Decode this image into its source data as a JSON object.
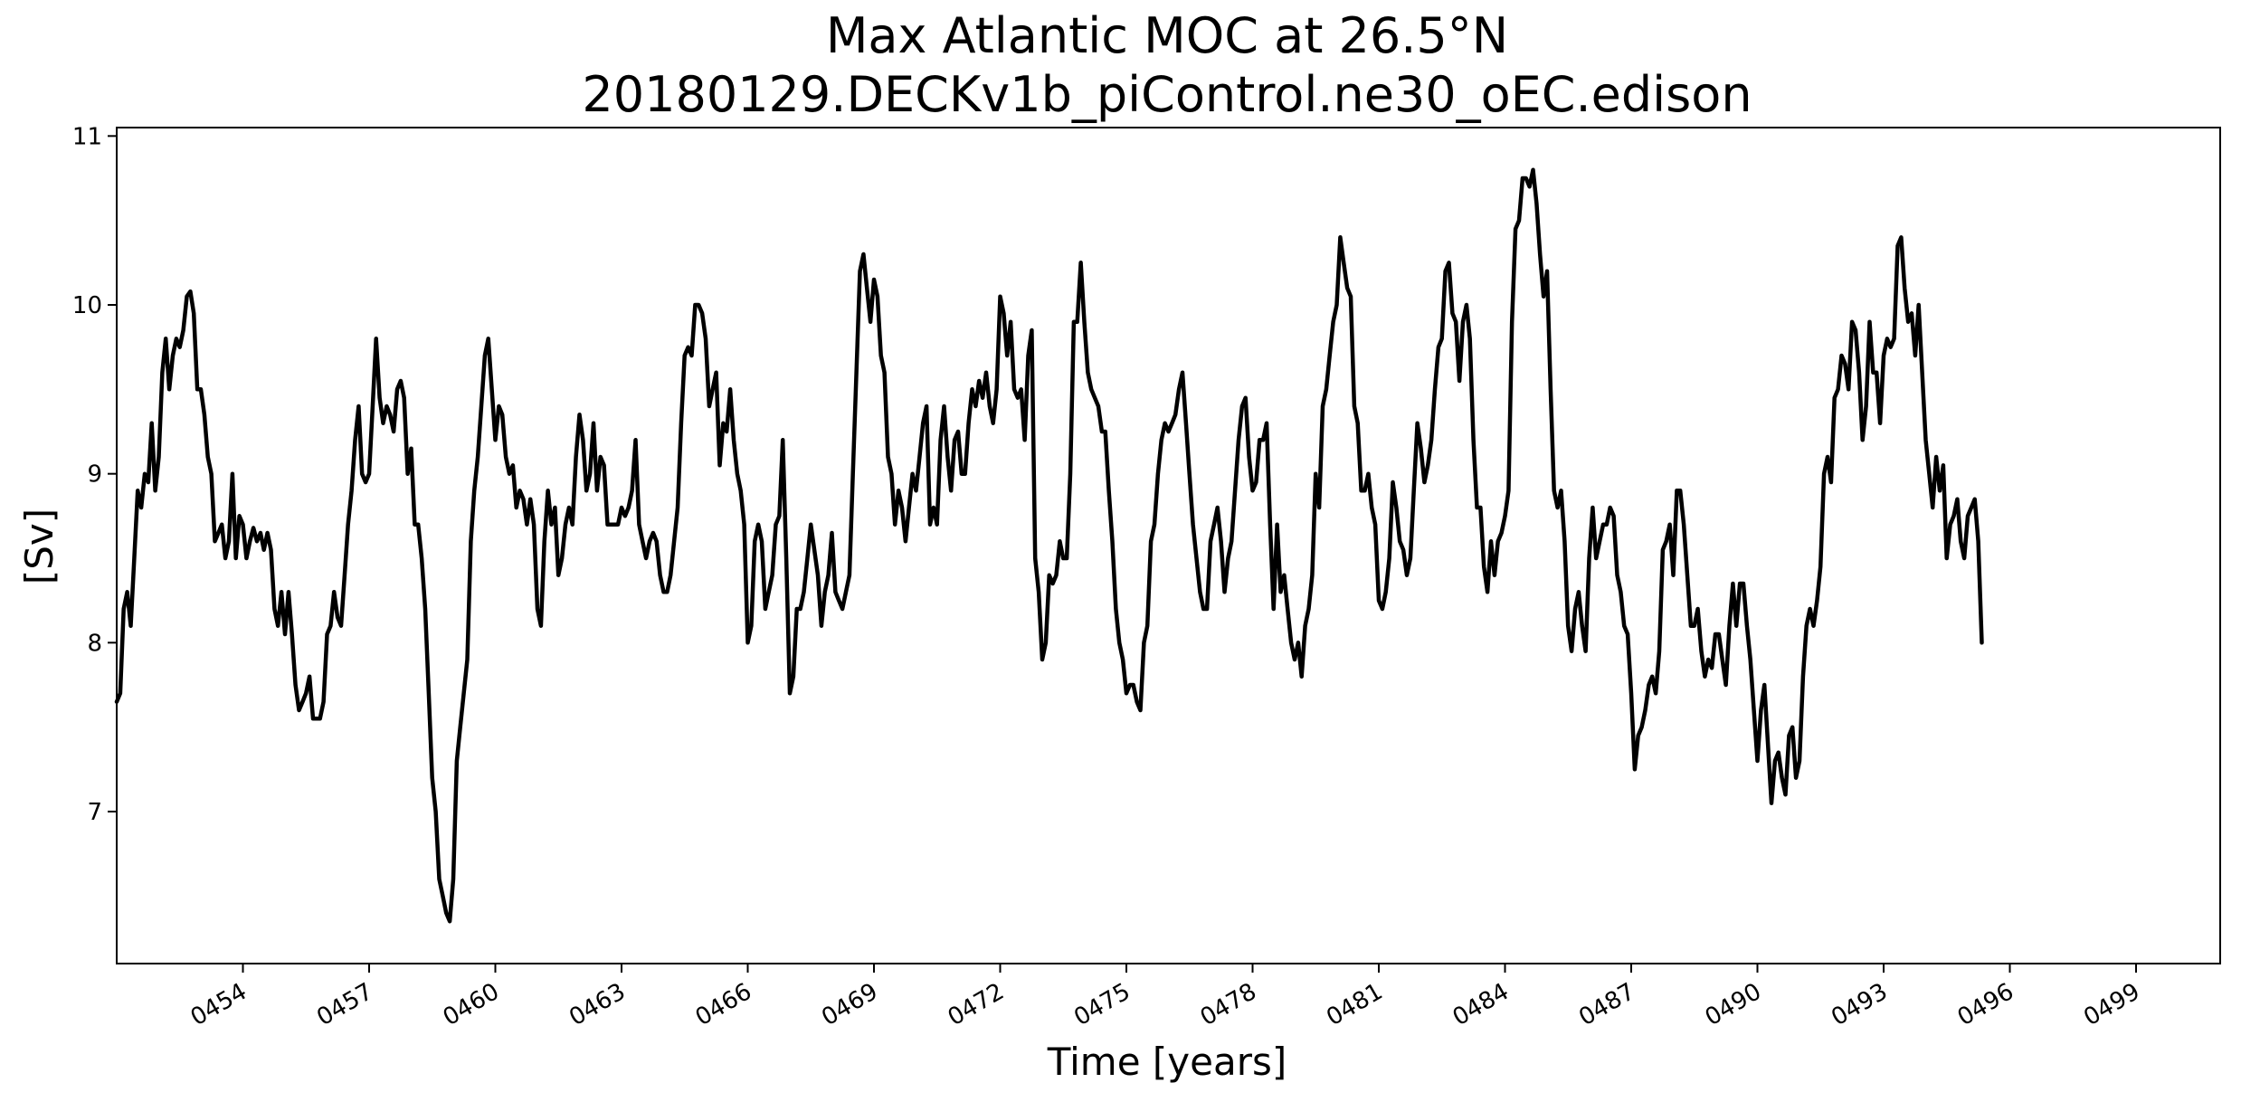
{
  "chart_data": {
    "type": "line",
    "title": "Max Atlantic MOC at 26.5°N",
    "subtitle": "20180129.DECKv1b_piControl.ne30_oEC.edison",
    "xlabel": "Time [years]",
    "ylabel": "[Sv]",
    "xlim": [
      451.0,
      501.0
    ],
    "ylim": [
      6.1,
      11.05
    ],
    "grid": false,
    "line_color": "#000000",
    "xticks": [
      454,
      457,
      460,
      463,
      466,
      469,
      472,
      475,
      478,
      481,
      484,
      487,
      490,
      493,
      496,
      499
    ],
    "xtick_labels": [
      "0454",
      "0457",
      "0460",
      "0463",
      "0466",
      "0469",
      "0472",
      "0475",
      "0478",
      "0481",
      "0484",
      "0487",
      "0490",
      "0493",
      "0496",
      "0499"
    ],
    "yticks": [
      7,
      8,
      9,
      10,
      11
    ],
    "ytick_labels": [
      "7",
      "8",
      "9",
      "10",
      "11"
    ],
    "series": [
      {
        "x_start": 451.0,
        "x_step": 0.0833333,
        "y": [
          7.65,
          7.7,
          8.2,
          8.3,
          8.1,
          8.5,
          8.9,
          8.8,
          9.0,
          8.95,
          9.3,
          8.9,
          9.1,
          9.6,
          9.8,
          9.5,
          9.7,
          9.8,
          9.75,
          9.85,
          10.05,
          10.08,
          9.95,
          9.5,
          9.5,
          9.35,
          9.1,
          9.0,
          8.6,
          8.65,
          8.7,
          8.5,
          8.6,
          9.0,
          8.5,
          8.75,
          8.7,
          8.5,
          8.6,
          8.68,
          8.6,
          8.65,
          8.55,
          8.65,
          8.55,
          8.2,
          8.1,
          8.3,
          8.05,
          8.3,
          8.05,
          7.75,
          7.6,
          7.65,
          7.7,
          7.8,
          7.55,
          7.55,
          7.55,
          7.65,
          8.05,
          8.1,
          8.3,
          8.15,
          8.1,
          8.4,
          8.7,
          8.9,
          9.2,
          9.4,
          9.0,
          8.95,
          9.0,
          9.4,
          9.8,
          9.45,
          9.3,
          9.4,
          9.35,
          9.25,
          9.5,
          9.55,
          9.45,
          9.0,
          9.15,
          8.7,
          8.7,
          8.5,
          8.2,
          7.7,
          7.2,
          7.0,
          6.6,
          6.5,
          6.4,
          6.35,
          6.6,
          7.3,
          7.5,
          7.7,
          7.9,
          8.6,
          8.9,
          9.1,
          9.4,
          9.7,
          9.8,
          9.5,
          9.2,
          9.4,
          9.35,
          9.1,
          9.0,
          9.05,
          8.8,
          8.9,
          8.85,
          8.7,
          8.85,
          8.7,
          8.2,
          8.1,
          8.6,
          8.9,
          8.7,
          8.8,
          8.4,
          8.5,
          8.7,
          8.8,
          8.7,
          9.1,
          9.35,
          9.2,
          8.9,
          9.0,
          9.3,
          8.9,
          9.1,
          9.05,
          8.7,
          8.7,
          8.7,
          8.7,
          8.8,
          8.75,
          8.8,
          8.9,
          9.2,
          8.7,
          8.6,
          8.5,
          8.6,
          8.65,
          8.6,
          8.4,
          8.3,
          8.3,
          8.4,
          8.6,
          8.8,
          9.3,
          9.7,
          9.75,
          9.7,
          10.0,
          10.0,
          9.95,
          9.8,
          9.4,
          9.5,
          9.6,
          9.05,
          9.3,
          9.25,
          9.5,
          9.2,
          9.0,
          8.9,
          8.7,
          8.0,
          8.1,
          8.6,
          8.7,
          8.6,
          8.2,
          8.3,
          8.4,
          8.7,
          8.75,
          9.2,
          8.5,
          7.7,
          7.8,
          8.2,
          8.2,
          8.3,
          8.5,
          8.7,
          8.55,
          8.4,
          8.1,
          8.3,
          8.4,
          8.65,
          8.3,
          8.25,
          8.2,
          8.3,
          8.4,
          9.0,
          9.6,
          10.2,
          10.3,
          10.1,
          9.9,
          10.15,
          10.05,
          9.7,
          9.6,
          9.1,
          9.0,
          8.7,
          8.9,
          8.8,
          8.6,
          8.8,
          9.0,
          8.9,
          9.1,
          9.3,
          9.4,
          8.7,
          8.8,
          8.7,
          9.2,
          9.4,
          9.1,
          8.9,
          9.2,
          9.25,
          9.0,
          9.0,
          9.3,
          9.5,
          9.4,
          9.55,
          9.45,
          9.6,
          9.4,
          9.3,
          9.5,
          10.05,
          9.95,
          9.7,
          9.9,
          9.5,
          9.45,
          9.5,
          9.2,
          9.7,
          9.85,
          8.5,
          8.3,
          7.9,
          8.0,
          8.4,
          8.35,
          8.4,
          8.6,
          8.5,
          8.5,
          9.0,
          9.9,
          9.9,
          10.25,
          9.9,
          9.6,
          9.5,
          9.45,
          9.4,
          9.25,
          9.25,
          8.9,
          8.6,
          8.2,
          8.0,
          7.9,
          7.7,
          7.75,
          7.75,
          7.65,
          7.6,
          8.0,
          8.1,
          8.6,
          8.7,
          9.0,
          9.2,
          9.3,
          9.25,
          9.3,
          9.35,
          9.5,
          9.6,
          9.3,
          9.0,
          8.7,
          8.5,
          8.3,
          8.2,
          8.2,
          8.6,
          8.7,
          8.8,
          8.6,
          8.3,
          8.5,
          8.6,
          8.9,
          9.2,
          9.4,
          9.45,
          9.1,
          8.9,
          8.95,
          9.2,
          9.2,
          9.3,
          8.7,
          8.2,
          8.7,
          8.3,
          8.4,
          8.2,
          8.0,
          7.9,
          8.0,
          7.8,
          8.1,
          8.2,
          8.4,
          9.0,
          8.8,
          9.4,
          9.5,
          9.7,
          9.9,
          10.0,
          10.4,
          10.25,
          10.1,
          10.05,
          9.4,
          9.3,
          8.9,
          8.9,
          9.0,
          8.8,
          8.7,
          8.25,
          8.2,
          8.3,
          8.5,
          8.95,
          8.8,
          8.6,
          8.55,
          8.4,
          8.5,
          8.9,
          9.3,
          9.15,
          8.95,
          9.05,
          9.2,
          9.5,
          9.75,
          9.8,
          10.2,
          10.25,
          9.95,
          9.9,
          9.55,
          9.9,
          10.0,
          9.8,
          9.2,
          8.8,
          8.8,
          8.45,
          8.3,
          8.6,
          8.4,
          8.6,
          8.65,
          8.75,
          8.9,
          9.9,
          10.45,
          10.5,
          10.75,
          10.75,
          10.7,
          10.8,
          10.6,
          10.3,
          10.05,
          10.2,
          9.5,
          8.9,
          8.8,
          8.9,
          8.6,
          8.1,
          7.95,
          8.2,
          8.3,
          8.1,
          7.95,
          8.5,
          8.8,
          8.5,
          8.6,
          8.7,
          8.7,
          8.8,
          8.75,
          8.4,
          8.3,
          8.1,
          8.05,
          7.7,
          7.25,
          7.45,
          7.5,
          7.6,
          7.75,
          7.8,
          7.7,
          7.95,
          8.55,
          8.6,
          8.7,
          8.4,
          8.9,
          8.9,
          8.7,
          8.4,
          8.1,
          8.1,
          8.2,
          7.95,
          7.8,
          7.9,
          7.85,
          8.05,
          8.05,
          7.9,
          7.75,
          8.1,
          8.35,
          8.1,
          8.35,
          8.35,
          8.1,
          7.9,
          7.6,
          7.3,
          7.6,
          7.75,
          7.4,
          7.05,
          7.3,
          7.35,
          7.2,
          7.1,
          7.45,
          7.5,
          7.2,
          7.3,
          7.8,
          8.1,
          8.2,
          8.1,
          8.25,
          8.45,
          9.0,
          9.1,
          8.95,
          9.45,
          9.5,
          9.7,
          9.65,
          9.5,
          9.9,
          9.85,
          9.6,
          9.2,
          9.4,
          9.9,
          9.6,
          9.6,
          9.3,
          9.7,
          9.8,
          9.75,
          9.8,
          10.35,
          10.4,
          10.1,
          9.9,
          9.95,
          9.7,
          10.0,
          9.6,
          9.2,
          9.0,
          8.8,
          9.1,
          8.9,
          9.05,
          8.5,
          8.7,
          8.75,
          8.85,
          8.6,
          8.5,
          8.75,
          8.8,
          8.85,
          8.6,
          8.0
        ]
      }
    ]
  }
}
